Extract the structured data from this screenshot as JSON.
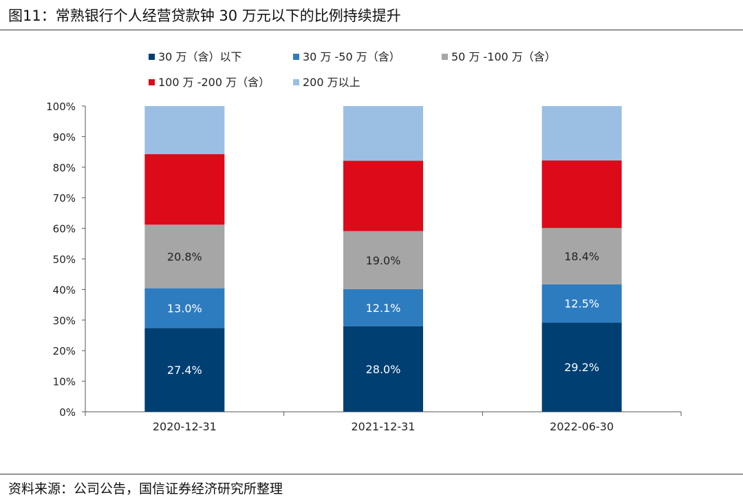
{
  "header": {
    "title": "图11：常熟银行个人经营贷款钟 30 万元以下的比例持续提升"
  },
  "footer": {
    "source": "资料来源：公司公告，国信证券经济研究所整理"
  },
  "chart_data": {
    "type": "bar",
    "stacked": true,
    "categories": [
      "2020-12-31",
      "2021-12-31",
      "2022-06-30"
    ],
    "y_ticks": [
      "0%",
      "10%",
      "20%",
      "30%",
      "40%",
      "50%",
      "60%",
      "70%",
      "80%",
      "90%",
      "100%"
    ],
    "ylim": [
      0,
      100
    ],
    "grid": false,
    "legend_position": "top",
    "series": [
      {
        "name": "30 万（含）以下",
        "color": "#003f72",
        "values": [
          27.4,
          28.0,
          29.2
        ],
        "labels": [
          "27.4%",
          "28.0%",
          "29.2%"
        ],
        "label_color": "#ffffff"
      },
      {
        "name": "30 万 -50 万（含）",
        "color": "#2e7cc0",
        "values": [
          13.0,
          12.1,
          12.5
        ],
        "labels": [
          "13.0%",
          "12.1%",
          "12.5%"
        ],
        "label_color": "#ffffff"
      },
      {
        "name": "50 万 -100 万（含）",
        "color": "#a6a6a6",
        "values": [
          20.8,
          19.0,
          18.4
        ],
        "labels": [
          "20.8%",
          "19.0%",
          "18.4%"
        ],
        "label_color": "#222222"
      },
      {
        "name": "100 万 -200 万（含）",
        "color": "#dd0a1a",
        "values": [
          23.1,
          23.0,
          22.1
        ],
        "labels": null,
        "label_color": "#ffffff"
      },
      {
        "name": "200 万以上",
        "color": "#9bbfe3",
        "values": [
          15.7,
          17.9,
          17.8
        ],
        "labels": null,
        "label_color": "#222222"
      }
    ]
  }
}
